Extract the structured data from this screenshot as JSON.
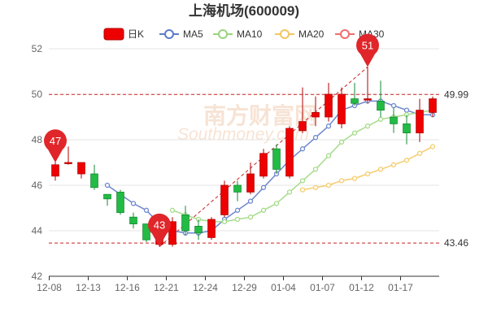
{
  "chart_data": {
    "type": "candlestick",
    "title": "上海机场(600009)",
    "legend": [
      {
        "name": "日K",
        "color": "#ee0000"
      },
      {
        "name": "MA5",
        "color": "#5b7bc6"
      },
      {
        "name": "MA10",
        "color": "#9ad47e"
      },
      {
        "name": "MA20",
        "color": "#f5c561"
      },
      {
        "name": "MA30",
        "color": "#f06d6d"
      }
    ],
    "ylim": [
      42,
      52
    ],
    "yticks": [
      "42",
      "44",
      "46",
      "48",
      "50",
      "52"
    ],
    "xticks": [
      {
        "i": 0,
        "label": "12-08"
      },
      {
        "i": 3,
        "label": "12-13"
      },
      {
        "i": 6,
        "label": "12-16"
      },
      {
        "i": 9,
        "label": "12-21"
      },
      {
        "i": 12,
        "label": "12-24"
      },
      {
        "i": 15,
        "label": "12-29"
      },
      {
        "i": 18,
        "label": "01-04"
      },
      {
        "i": 21,
        "label": "01-07"
      },
      {
        "i": 24,
        "label": "01-12"
      },
      {
        "i": 27,
        "label": "01-17"
      }
    ],
    "up_color": "#ee0000",
    "down_color": "#22bb44",
    "candles": [
      {
        "o": 46.4,
        "c": 46.9,
        "h": 47.2,
        "l": 46.2
      },
      {
        "o": 47.0,
        "c": 47.0,
        "h": 47.7,
        "l": 46.9
      },
      {
        "o": 46.5,
        "c": 47.0,
        "h": 47.0,
        "l": 46.3
      },
      {
        "o": 46.5,
        "c": 45.9,
        "h": 46.9,
        "l": 45.8
      },
      {
        "o": 45.6,
        "c": 45.4,
        "h": 45.6,
        "l": 45.1
      },
      {
        "o": 45.7,
        "c": 44.8,
        "h": 45.8,
        "l": 44.7
      },
      {
        "o": 44.6,
        "c": 44.3,
        "h": 44.8,
        "l": 44.1
      },
      {
        "o": 44.3,
        "c": 43.6,
        "h": 44.3,
        "l": 43.5
      },
      {
        "o": 43.4,
        "c": 43.7,
        "h": 43.8,
        "l": 43.3
      },
      {
        "o": 43.4,
        "c": 44.4,
        "h": 44.6,
        "l": 43.3
      },
      {
        "o": 44.7,
        "c": 44.0,
        "h": 45.1,
        "l": 43.8
      },
      {
        "o": 44.2,
        "c": 43.9,
        "h": 44.5,
        "l": 43.6
      },
      {
        "o": 43.7,
        "c": 44.5,
        "h": 44.6,
        "l": 43.6
      },
      {
        "o": 44.7,
        "c": 46.0,
        "h": 46.2,
        "l": 44.6
      },
      {
        "o": 46.0,
        "c": 45.7,
        "h": 46.2,
        "l": 45.3
      },
      {
        "o": 45.7,
        "c": 46.5,
        "h": 47.0,
        "l": 45.6
      },
      {
        "o": 46.4,
        "c": 47.4,
        "h": 47.6,
        "l": 46.3
      },
      {
        "o": 47.6,
        "c": 46.7,
        "h": 47.8,
        "l": 46.5
      },
      {
        "o": 46.4,
        "c": 48.5,
        "h": 48.6,
        "l": 46.3
      },
      {
        "o": 48.4,
        "c": 48.8,
        "h": 50.3,
        "l": 48.3
      },
      {
        "o": 49.0,
        "c": 49.2,
        "h": 49.9,
        "l": 48.6
      },
      {
        "o": 49.0,
        "c": 50.0,
        "h": 50.5,
        "l": 48.8
      },
      {
        "o": 48.7,
        "c": 50.0,
        "h": 50.3,
        "l": 48.5
      },
      {
        "o": 49.8,
        "c": 49.6,
        "h": 50.5,
        "l": 49.5
      },
      {
        "o": 49.8,
        "c": 49.8,
        "h": 51.2,
        "l": 49.6
      },
      {
        "o": 49.7,
        "c": 49.3,
        "h": 50.6,
        "l": 49.0
      },
      {
        "o": 49.0,
        "c": 48.7,
        "h": 49.4,
        "l": 48.3
      },
      {
        "o": 48.7,
        "c": 48.3,
        "h": 49.1,
        "l": 47.8
      },
      {
        "o": 48.3,
        "c": 49.3,
        "h": 49.8,
        "l": 47.9
      },
      {
        "o": 49.2,
        "c": 49.8,
        "h": 49.9,
        "l": 49.0
      }
    ],
    "ma5": [
      null,
      null,
      null,
      null,
      46.0,
      45.6,
      45.2,
      44.9,
      44.3,
      44.0,
      43.9,
      43.9,
      44.0,
      44.5,
      44.9,
      45.3,
      45.9,
      46.5,
      47.1,
      47.6,
      48.1,
      48.6,
      49.3,
      49.5,
      49.7,
      49.7,
      49.5,
      49.3,
      49.1,
      49.1
    ],
    "ma10": [
      null,
      null,
      null,
      null,
      null,
      null,
      null,
      null,
      null,
      44.9,
      44.7,
      44.5,
      44.4,
      44.4,
      44.5,
      44.6,
      44.9,
      45.2,
      45.7,
      46.2,
      46.7,
      47.3,
      47.9,
      48.3,
      48.6,
      48.9,
      49.0,
      49.1,
      49.2,
      49.3
    ],
    "ma20": [
      null,
      null,
      null,
      null,
      null,
      null,
      null,
      null,
      null,
      null,
      null,
      null,
      null,
      null,
      null,
      null,
      null,
      null,
      null,
      45.8,
      45.9,
      46.0,
      46.2,
      46.3,
      46.5,
      46.7,
      46.9,
      47.1,
      47.4,
      47.7
    ],
    "ref_high": 49.99,
    "ref_low": 43.46,
    "ref_high_label": "49.99",
    "ref_low_label": "43.46",
    "markers": [
      {
        "i": 0,
        "value": 47.0,
        "label": "47"
      },
      {
        "i": 8,
        "value": 43.3,
        "label": "43"
      },
      {
        "i": 24,
        "value": 51.2,
        "label": "51"
      }
    ],
    "watermark": {
      "cn": "南方财富网",
      "en": "Southmoney.com"
    }
  }
}
